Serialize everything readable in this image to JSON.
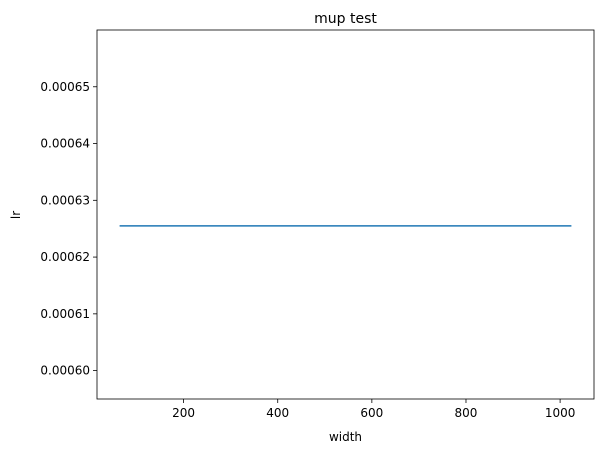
{
  "chart_data": {
    "type": "line",
    "title": "mup test",
    "xlabel": "width",
    "ylabel": "lr",
    "xlim": [
      16,
      1072
    ],
    "ylim": [
      0.000595,
      0.00066
    ],
    "xticks": [
      200,
      400,
      600,
      800,
      1000
    ],
    "yticks": [
      0.0006,
      0.00061,
      0.00062,
      0.00063,
      0.00064,
      0.00065
    ],
    "xtick_labels": [
      "200",
      "400",
      "600",
      "800",
      "1000"
    ],
    "ytick_labels": [
      "0.00060",
      "0.00061",
      "0.00062",
      "0.00063",
      "0.00064",
      "0.00065"
    ],
    "grid": false,
    "series": [
      {
        "color": "#1f77b4",
        "x": [
          64,
          128,
          256,
          512,
          1024
        ],
        "y": [
          0.0006255,
          0.0006255,
          0.0006255,
          0.0006255,
          0.0006255
        ]
      }
    ]
  }
}
